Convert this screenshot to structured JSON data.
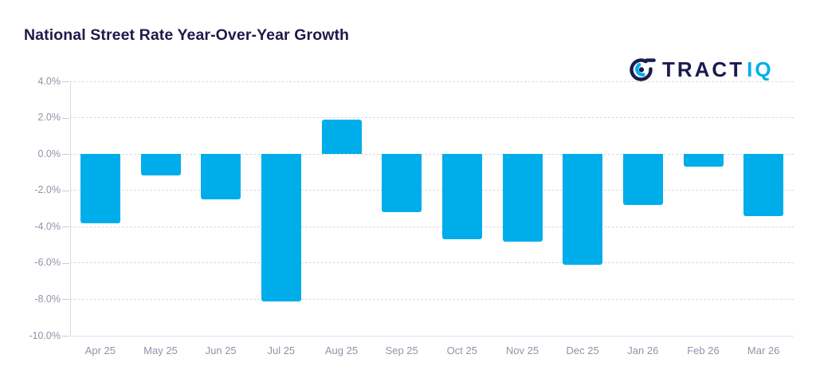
{
  "header": {
    "title": "National Street Rate Year-Over-Year Growth",
    "title_color": "#1e1a4a"
  },
  "logo": {
    "name": "TractIQ",
    "primary_text": "TRACT",
    "accent_text": "IQ",
    "primary_color": "#1b1b4e",
    "accent_color": "#00AEEF"
  },
  "chart_data": {
    "type": "bar",
    "title": "National Street Rate Year-Over-Year Growth",
    "categories": [
      "Apr 25",
      "May 25",
      "Jun 25",
      "Jul 25",
      "Aug 25",
      "Sep 25",
      "Oct 25",
      "Nov 25",
      "Dec 25",
      "Jan 26",
      "Feb 26",
      "Mar 26"
    ],
    "values": [
      -3.8,
      -1.2,
      -2.5,
      -8.1,
      1.9,
      -3.2,
      -4.7,
      -4.8,
      -6.1,
      -2.8,
      -0.7,
      -3.4
    ],
    "unit": "%",
    "xlabel": "",
    "ylabel": "",
    "ylim": [
      -10,
      4
    ],
    "yticks": [
      4,
      2,
      0,
      -2,
      -4,
      -6,
      -8,
      -10
    ],
    "ytick_labels": [
      "4.0%",
      "2.0%",
      "0.0%",
      "-2.0%",
      "-4.0%",
      "-6.0%",
      "-8.0%",
      "-10.0%"
    ],
    "grid": "horizontal-dashed",
    "legend": "none",
    "bar_color": "#00ADEB",
    "gridline_color": "#d9dae3",
    "axis_label_color": "#8e95a6"
  }
}
